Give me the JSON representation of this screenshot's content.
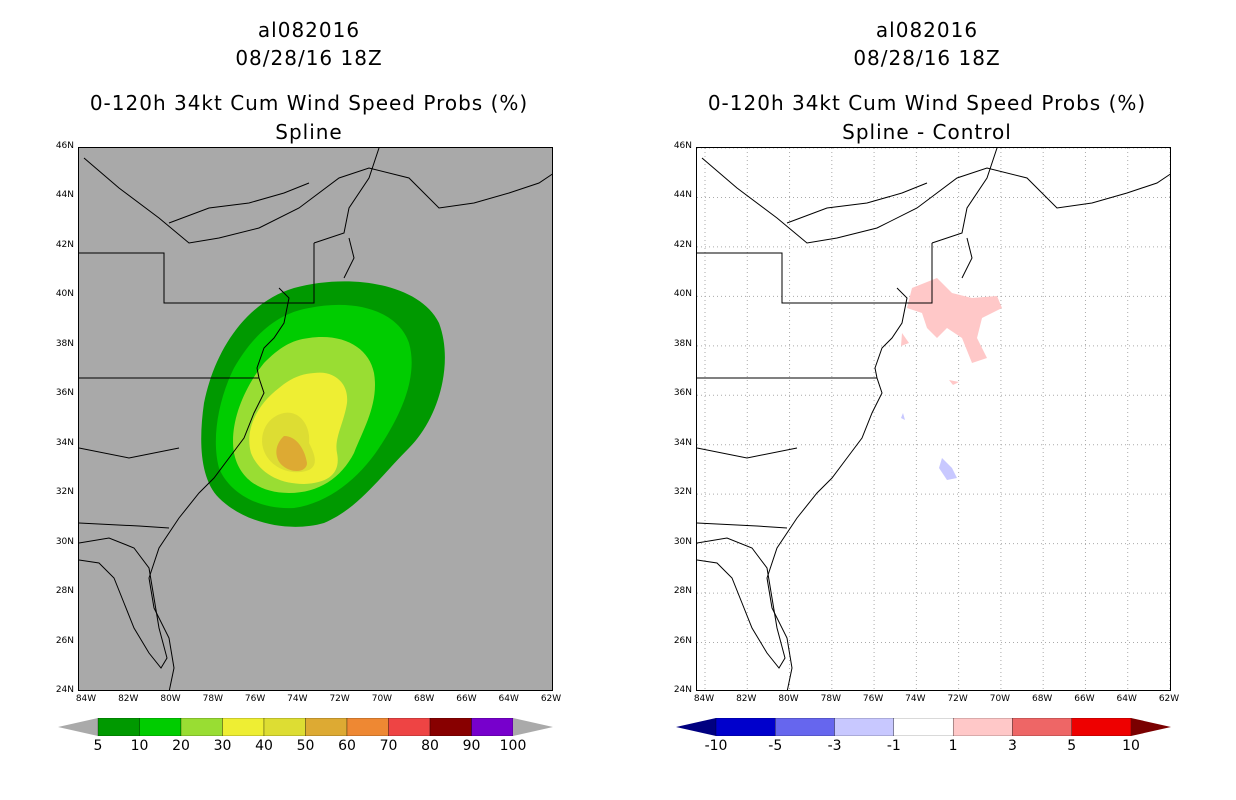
{
  "panels": [
    {
      "storm_id": "al082016",
      "datetime": "08/28/16 18Z",
      "product": "0-120h 34kt Cum Wind Speed Probs (%)",
      "subtitle": "Spline",
      "background": "#a9a9a9",
      "colorbar": {
        "labels": [
          "5",
          "10",
          "20",
          "30",
          "40",
          "50",
          "60",
          "70",
          "80",
          "90",
          "100"
        ],
        "colors": [
          "#009900",
          "#00cc00",
          "#99dd33",
          "#eeee33",
          "#dddd33",
          "#ddaa33",
          "#ee8833",
          "#ee4444",
          "#880000",
          "#7700cc"
        ],
        "end_color": "#aaaaaa"
      }
    },
    {
      "storm_id": "al082016",
      "datetime": "08/28/16 18Z",
      "product": "0-120h 34kt Cum Wind Speed Probs (%)",
      "subtitle": "Spline - Control",
      "background": "#ffffff",
      "colorbar": {
        "labels": [
          "-10",
          "-5",
          "-3",
          "-1",
          "1",
          "3",
          "5",
          "10"
        ],
        "colors": [
          "#0000cc",
          "#6666ee",
          "#c8c8ff",
          "#ffffff",
          "#ffc8c8",
          "#ee6666",
          "#ee0000"
        ],
        "start_color": "#000080",
        "end_color": "#7a0000"
      }
    }
  ],
  "axes": {
    "lat_labels": [
      "46N",
      "44N",
      "42N",
      "40N",
      "38N",
      "36N",
      "34N",
      "32N",
      "30N",
      "28N",
      "26N",
      "24N"
    ],
    "lon_labels": [
      "84W",
      "82W",
      "80W",
      "78W",
      "76W",
      "74W",
      "72W",
      "70W",
      "68W",
      "66W",
      "64W",
      "62W"
    ],
    "lat_values": [
      46,
      44,
      42,
      40,
      38,
      36,
      34,
      32,
      30,
      28,
      26,
      24
    ],
    "lon_values": [
      -84,
      -82,
      -80,
      -78,
      -76,
      -74,
      -72,
      -70,
      -68,
      -66,
      -64,
      -62
    ]
  }
}
